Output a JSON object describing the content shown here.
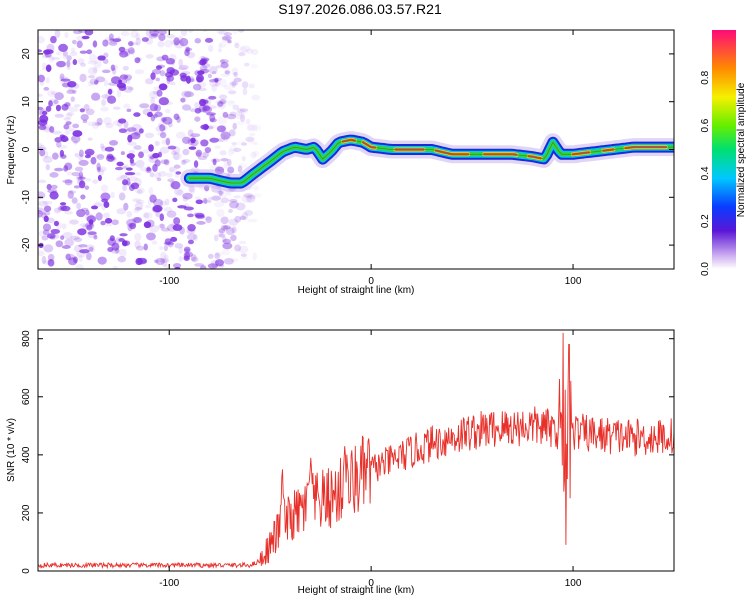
{
  "title": "S197.2026.086.03.57.R21",
  "colors": {
    "snr_line": "#e8302a",
    "speckle": "#7a2be0",
    "track_core": "#2a8c2a"
  },
  "chart_data": [
    {
      "type": "heatmap",
      "name": "spectrogram",
      "xlabel": "Height of straight line (km)",
      "ylabel": "Frequency (Hz)",
      "xlim": [
        -165,
        150
      ],
      "ylim": [
        -25,
        25
      ],
      "xticks": [
        "-100",
        "0",
        "100"
      ],
      "yticks": [
        "-20",
        "-10",
        "0",
        "10",
        "20"
      ],
      "colorbar": {
        "label": "Normalized spectral amplitude",
        "range": [
          0,
          1
        ],
        "ticks": [
          "0.0",
          "0.2",
          "0.4",
          "0.6",
          "0.8"
        ]
      },
      "noise_region_x": [
        -165,
        -60
      ],
      "track": {
        "x": [
          -90,
          -80,
          -70,
          -64,
          -58,
          -50,
          -44,
          -38,
          -32,
          -28,
          -24,
          -20,
          -16,
          -10,
          -4,
          0,
          10,
          20,
          30,
          40,
          50,
          60,
          70,
          80,
          86,
          90,
          94,
          100,
          110,
          120,
          130,
          140,
          150
        ],
        "freq": [
          -6,
          -6,
          -7,
          -7,
          -5,
          -2.5,
          -0.5,
          0.5,
          0,
          0.5,
          -2,
          -0.5,
          1.5,
          2,
          1.5,
          0.5,
          0,
          0,
          0,
          -1,
          -1,
          -1,
          -1,
          -1.5,
          -2,
          1.5,
          -1,
          -1,
          -0.5,
          0,
          0.5,
          0.5,
          0.5
        ]
      }
    },
    {
      "type": "line",
      "name": "snr",
      "xlabel": "Height of straight line (km)",
      "ylabel": "SNR (10 * v/v)",
      "xlim": [
        -165,
        150
      ],
      "ylim": [
        0,
        830
      ],
      "xticks": [
        "-100",
        "0",
        "100"
      ],
      "yticks": [
        "0",
        "200",
        "400",
        "600",
        "800"
      ],
      "envelope": {
        "x": [
          -165,
          -60,
          -55,
          -50,
          -45,
          -40,
          -30,
          -20,
          -10,
          0,
          10,
          20,
          30,
          40,
          50,
          60,
          70,
          80,
          90,
          100,
          110,
          120,
          130,
          140,
          150
        ],
        "y": [
          20,
          20,
          35,
          90,
          150,
          180,
          230,
          250,
          300,
          350,
          380,
          410,
          440,
          460,
          480,
          490,
          495,
          500,
          490,
          480,
          470,
          465,
          460,
          460,
          465
        ]
      },
      "spikes": [
        {
          "x": -44,
          "y": 350
        },
        {
          "x": -30,
          "y": 390
        },
        {
          "x": -13,
          "y": 430
        },
        {
          "x": 95,
          "y": 820
        },
        {
          "x": 96.5,
          "y": 90
        },
        {
          "x": 98,
          "y": 780
        }
      ]
    }
  ]
}
